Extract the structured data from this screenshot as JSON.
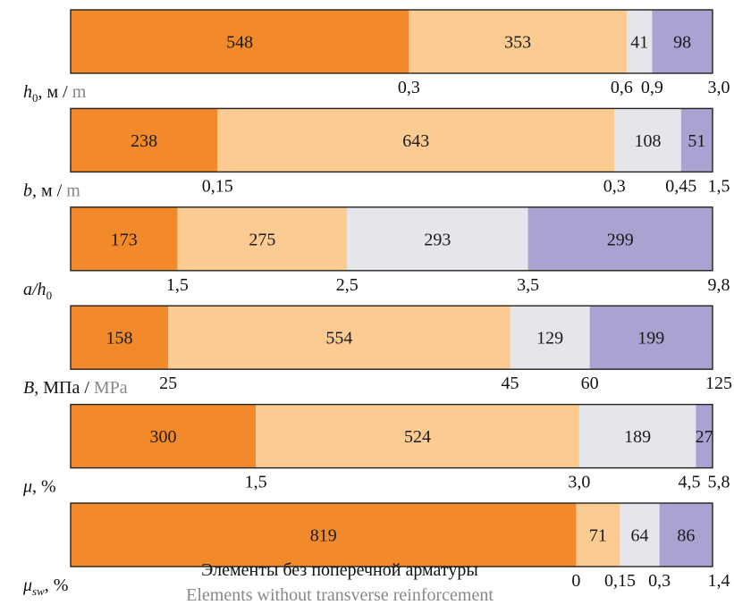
{
  "colors": {
    "segments": [
      "#F28A2C",
      "#FCCB92",
      "#E5E6EB",
      "#A8A3D1"
    ],
    "bar_border": "#222222",
    "secondary_text": "#888888"
  },
  "note": {
    "ru": "Элементы без поперечной арматуры",
    "en": "Elements without transverse reinforcement"
  },
  "chart_data": {
    "type": "bar",
    "orientation": "horizontal",
    "stacked": true,
    "rows": [
      {
        "label_main": "h",
        "label_sub": "0",
        "label_rest": ", м / ",
        "label_en": "m",
        "values": [
          548,
          353,
          41,
          98
        ],
        "ticks": [
          "0,3",
          "0,6",
          "0,9",
          "3,0"
        ]
      },
      {
        "label_main": "b",
        "label_sub": "",
        "label_rest": ", м / ",
        "label_en": "m",
        "values": [
          238,
          643,
          108,
          51
        ],
        "ticks": [
          "0,15",
          "0,3",
          "0,45",
          "1,5"
        ]
      },
      {
        "label_main": "a",
        "label_mid": "/h",
        "label_sub": "0",
        "label_rest": "",
        "label_en": "",
        "values": [
          173,
          275,
          293,
          299
        ],
        "ticks": [
          "1,5",
          "2,5",
          "3,5",
          "9,8"
        ]
      },
      {
        "label_main": "B",
        "label_sub": "",
        "label_rest": ", МПа / ",
        "label_en": "MPa",
        "values": [
          158,
          554,
          129,
          199
        ],
        "ticks": [
          "25",
          "45",
          "60",
          "125"
        ]
      },
      {
        "label_main": "μ",
        "label_sub": "",
        "label_rest": ", %",
        "label_en": "",
        "values": [
          300,
          524,
          189,
          27
        ],
        "ticks": [
          "1,5",
          "3,0",
          "4,5",
          "5,8"
        ]
      },
      {
        "label_main": "μ",
        "label_sub": "sw",
        "label_rest": ", %",
        "label_en": "",
        "values": [
          819,
          71,
          64,
          86
        ],
        "ticks": [
          "0",
          "0,15",
          "0,3",
          "1,4"
        ]
      }
    ]
  }
}
